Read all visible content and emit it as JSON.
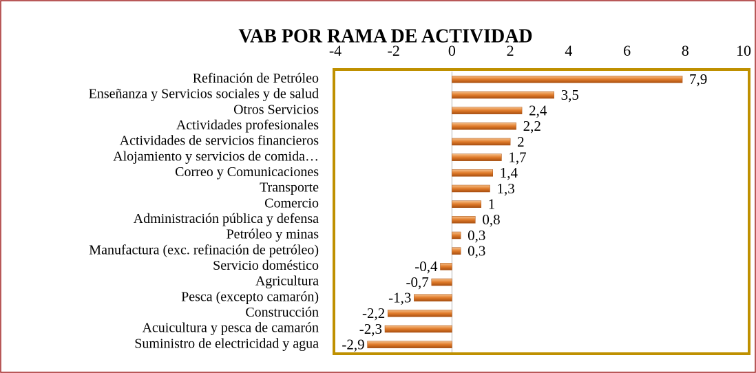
{
  "chart_data": {
    "type": "bar",
    "orientation": "horizontal",
    "title": "VAB POR RAMA DE ACTIVIDAD",
    "categories": [
      "Refinación de Petróleo",
      "Enseñanza y Servicios sociales y de salud",
      "Otros Servicios",
      "Actividades profesionales",
      "Actividades de servicios financieros",
      "Alojamiento y servicios de comida…",
      "Correo y Comunicaciones",
      "Transporte",
      "Comercio",
      "Administración pública y defensa",
      "Petróleo y minas",
      "Manufactura (exc. refinación de petróleo)",
      "Servicio doméstico",
      "Agricultura",
      "Pesca (excepto camarón)",
      "Construcción",
      "Acuicultura y pesca de camarón",
      "Suministro de electricidad y agua"
    ],
    "values": [
      7.9,
      3.5,
      2.4,
      2.2,
      2,
      1.7,
      1.4,
      1.3,
      1,
      0.8,
      0.3,
      0.3,
      -0.4,
      -0.7,
      -1.3,
      -2.2,
      -2.3,
      -2.9
    ],
    "value_labels": [
      "7,9",
      "3,5",
      "2,4",
      "2,2",
      "2",
      "1,7",
      "1,4",
      "1,3",
      "1",
      "0,8",
      "0,3",
      "0,3",
      "-0,4",
      "-0,7",
      "-1,3",
      "-2,2",
      "-2,3",
      "-2,9"
    ],
    "color": "#e07b2a",
    "xlim": [
      -4,
      10
    ],
    "xticks": [
      -4,
      -2,
      0,
      2,
      4,
      6,
      8,
      10
    ]
  }
}
